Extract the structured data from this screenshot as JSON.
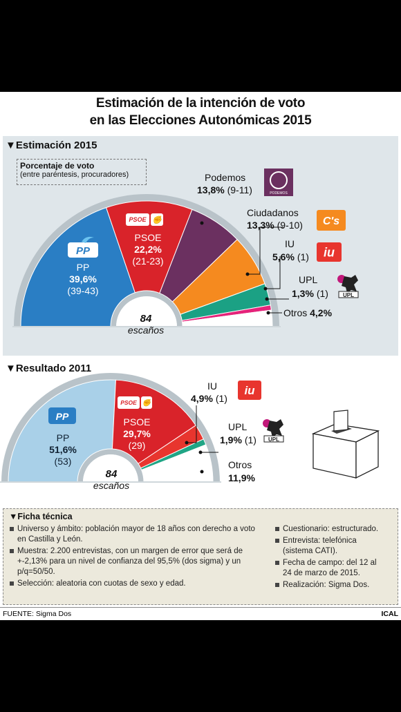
{
  "title_line1": "Estimación de la intención de voto",
  "title_line2": "en las Elecciones Autonómicas 2015",
  "sections": {
    "estimate_heading": "▼Estimación 2015",
    "result_heading": "▼Resultado 2011"
  },
  "legend": {
    "line1": "Porcentaje de voto",
    "line2": "(entre paréntesis, procuradores)"
  },
  "seats_total": "84",
  "seats_word": "escaños",
  "logos": {
    "pp": "PP",
    "psoe": "PSOE",
    "podemos": "PODEMOS",
    "ciudadanos": "C's",
    "iu": "iu",
    "upl": "UPL"
  },
  "colors": {
    "pp": "#2a7ec4",
    "pp_2011": "#a9d0e8",
    "psoe": "#d9232a",
    "podemos": "#6b3060",
    "ciudadanos": "#f58a1f",
    "iu": "#e8352e",
    "upl": "#1ba184",
    "upl_2011": "#20a585",
    "otros_pink": "#e5237a"
  },
  "chart_data": [
    {
      "type": "pie",
      "title": "Estimación 2015",
      "unit": "%",
      "seats_total": 84,
      "series": [
        {
          "name": "PP",
          "value": 39.6,
          "seats": "(39-43)"
        },
        {
          "name": "PSOE",
          "value": 22.2,
          "seats": "(21-23)"
        },
        {
          "name": "Podemos",
          "value": 13.8,
          "seats": "(9-11)"
        },
        {
          "name": "Ciudadanos",
          "value": 13.3,
          "seats": "(9-10)"
        },
        {
          "name": "IU",
          "value": 5.6,
          "seats": "(1)"
        },
        {
          "name": "UPL",
          "value": 1.3,
          "seats": "(1)"
        },
        {
          "name": "Otros",
          "value": 4.2,
          "seats": ""
        }
      ]
    },
    {
      "type": "pie",
      "title": "Resultado 2011",
      "unit": "%",
      "seats_total": 84,
      "series": [
        {
          "name": "PP",
          "value": 51.6,
          "seats": "(53)"
        },
        {
          "name": "PSOE",
          "value": 29.7,
          "seats": "(29)"
        },
        {
          "name": "IU",
          "value": 4.9,
          "seats": "(1)"
        },
        {
          "name": "UPL",
          "value": 1.9,
          "seats": "(1)"
        },
        {
          "name": "Otros",
          "value": 11.9,
          "seats": ""
        }
      ]
    }
  ],
  "labels_2015": {
    "pp": {
      "name": "PP",
      "pct": "39,6%",
      "seats": "(39-43)"
    },
    "psoe": {
      "name": "PSOE",
      "pct": "22,2%",
      "seats": "(21-23)"
    },
    "podemos": {
      "name": "Podemos",
      "pct": "13,8%",
      "seats": "(9-11)"
    },
    "ciudadanos": {
      "name": "Ciudadanos",
      "pct": "13,3%",
      "seats": "(9-10)"
    },
    "iu": {
      "name": "IU",
      "pct": "5,6%",
      "seats": "(1)"
    },
    "upl": {
      "name": "UPL",
      "pct": "1,3%",
      "seats": "(1)"
    },
    "otros": {
      "name": "Otros",
      "pct": "4,2%"
    }
  },
  "labels_2011": {
    "pp": {
      "name": "PP",
      "pct": "51,6%",
      "seats": "(53)"
    },
    "psoe": {
      "name": "PSOE",
      "pct": "29,7%",
      "seats": "(29)"
    },
    "iu": {
      "name": "IU",
      "pct": "4,9%",
      "seats": "(1)"
    },
    "upl": {
      "name": "UPL",
      "pct": "1,9%",
      "seats": "(1)"
    },
    "otros": {
      "name": "Otros",
      "pct": "11,9%"
    }
  },
  "ficha": {
    "heading": "▼Ficha técnica",
    "left": [
      "Universo y ámbito: población mayor de 18 años con derecho a voto en Castilla y León.",
      "Muestra: 2.200 entrevistas, con un margen de error que será de +-2,13% para un nivel de confianza del 95,5% (dos sigma) y un p/q=50/50.",
      "Selección: aleatoria con cuotas de sexo y edad."
    ],
    "right": [
      "Cuestionario: estructurado.",
      "Entrevista: telefónica (sistema CATI).",
      "Fecha de campo: del 12 al 24 de marzo de 2015.",
      "Realización: Sigma Dos."
    ]
  },
  "footer": {
    "source": "FUENTE: Sigma Dos",
    "agency": "ICAL"
  }
}
